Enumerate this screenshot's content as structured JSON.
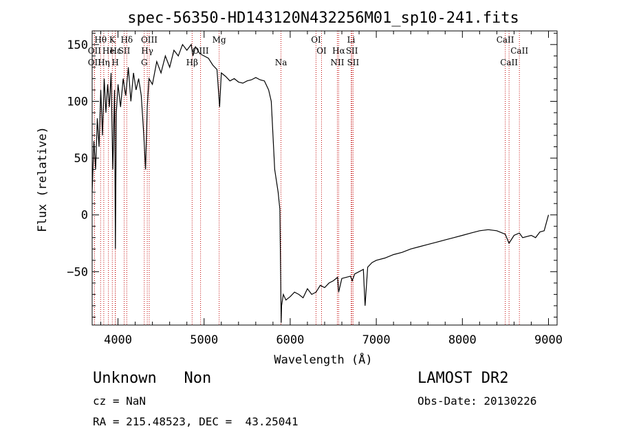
{
  "chart_data": {
    "type": "line",
    "title": "spec-56350-HD143120N432256M01_sp10-241.fits",
    "xlabel": "Wavelength (Å)",
    "ylabel": "Flux (relative)",
    "xlim": [
      3700,
      9100
    ],
    "ylim": [
      -97,
      162
    ],
    "xticks": [
      4000,
      5000,
      6000,
      7000,
      8000,
      9000
    ],
    "yticks": [
      -50,
      0,
      50,
      100,
      150
    ],
    "x_tick_labels": [
      "4000",
      "5000",
      "6000",
      "7000",
      "8000",
      "9000"
    ],
    "y_tick_labels": [
      "−50",
      "0",
      "50",
      "100",
      "150"
    ],
    "grid": false,
    "line_color": "#000000",
    "marker_color": "#c00000",
    "series": [
      {
        "x": [
          3700,
          3720,
          3740,
          3760,
          3780,
          3800,
          3820,
          3840,
          3860,
          3880,
          3900,
          3920,
          3940,
          3960,
          3970,
          3980,
          4000,
          4030,
          4060,
          4090,
          4120,
          4150,
          4180,
          4210,
          4240,
          4270,
          4300,
          4320,
          4340,
          4360,
          4400,
          4450,
          4500,
          4550,
          4600,
          4650,
          4700,
          4750,
          4800,
          4850,
          4870,
          4900,
          4950,
          5000,
          5050,
          5100,
          5150,
          5180,
          5200,
          5250,
          5300,
          5350,
          5400,
          5450,
          5500,
          5550,
          5600,
          5650,
          5700,
          5750,
          5780,
          5800,
          5820,
          5840,
          5860,
          5880,
          5890,
          5895,
          5900,
          5920,
          5950,
          6000,
          6050,
          6100,
          6150,
          6200,
          6250,
          6300,
          6350,
          6400,
          6450,
          6500,
          6550,
          6563,
          6600,
          6650,
          6700,
          6720,
          6750,
          6800,
          6850,
          6870,
          6900,
          6950,
          7000,
          7100,
          7200,
          7300,
          7400,
          7500,
          7600,
          7700,
          7800,
          7900,
          8000,
          8100,
          8200,
          8300,
          8400,
          8498,
          8542,
          8600,
          8662,
          8700,
          8800,
          8850,
          8900,
          8950,
          9000
        ],
        "y": [
          20,
          65,
          40,
          85,
          60,
          110,
          70,
          120,
          90,
          115,
          95,
          125,
          40,
          110,
          -30,
          90,
          115,
          95,
          120,
          105,
          130,
          100,
          125,
          110,
          120,
          105,
          70,
          40,
          95,
          120,
          115,
          135,
          125,
          140,
          130,
          145,
          140,
          150,
          145,
          150,
          140,
          148,
          142,
          140,
          138,
          132,
          128,
          95,
          125,
          122,
          118,
          120,
          117,
          116,
          118,
          119,
          121,
          119,
          118,
          110,
          100,
          70,
          40,
          30,
          20,
          5,
          -60,
          -95,
          -80,
          -70,
          -75,
          -72,
          -68,
          -70,
          -73,
          -65,
          -70,
          -68,
          -62,
          -64,
          -60,
          -58,
          -55,
          -68,
          -56,
          -55,
          -54,
          -58,
          -52,
          -50,
          -48,
          -80,
          -46,
          -42,
          -40,
          -38,
          -35,
          -33,
          -30,
          -28,
          -26,
          -24,
          -22,
          -20,
          -18,
          -16,
          -14,
          -13,
          -14,
          -17,
          -25,
          -18,
          -16,
          -20,
          -18,
          -20,
          -15,
          -14,
          0
        ]
      }
    ]
  },
  "line_markers": [
    {
      "name": "Hθ",
      "x": 3798,
      "row": 1
    },
    {
      "name": "OII",
      "x": 3727,
      "row": 2
    },
    {
      "name": "OII",
      "x": 3727,
      "row": 3
    },
    {
      "name": "K",
      "x": 3934,
      "row": 1
    },
    {
      "name": "Hδ",
      "x": 4102,
      "row": 1
    },
    {
      "name": "Hε",
      "x": 3970,
      "row": 2
    },
    {
      "name": "He",
      "x": 3889,
      "row": 2
    },
    {
      "name": "SII",
      "x": 4072,
      "row": 2
    },
    {
      "name": "Hη",
      "x": 3835,
      "row": 3
    },
    {
      "name": "H",
      "x": 3968,
      "row": 3
    },
    {
      "name": "OIII",
      "x": 4363,
      "row": 1
    },
    {
      "name": "Hγ",
      "x": 4340,
      "row": 2
    },
    {
      "name": "G",
      "x": 4305,
      "row": 3
    },
    {
      "name": "OIII",
      "x": 4959,
      "row": 2
    },
    {
      "name": "Hβ",
      "x": 4861,
      "row": 3
    },
    {
      "name": "Mg",
      "x": 5175,
      "row": 1
    },
    {
      "name": "Na",
      "x": 5893,
      "row": 3
    },
    {
      "name": "OI",
      "x": 6300,
      "row": 1
    },
    {
      "name": "OI",
      "x": 6364,
      "row": 2
    },
    {
      "name": "Li",
      "x": 6708,
      "row": 1
    },
    {
      "name": "Hα",
      "x": 6563,
      "row": 2
    },
    {
      "name": "SII",
      "x": 6717,
      "row": 2
    },
    {
      "name": "NII",
      "x": 6548,
      "row": 3
    },
    {
      "name": "SII",
      "x": 6731,
      "row": 3
    },
    {
      "name": "CaII",
      "x": 8498,
      "row": 1
    },
    {
      "name": "CaII",
      "x": 8662,
      "row": 2
    },
    {
      "name": "CaII",
      "x": 8542,
      "row": 3
    }
  ],
  "info": {
    "class_label": "Unknown   Non",
    "survey": "LAMOST DR2",
    "cz": "cz = NaN",
    "obs_date": "Obs-Date: 20130226",
    "radec": "RA = 215.48523, DEC =  43.25041"
  }
}
